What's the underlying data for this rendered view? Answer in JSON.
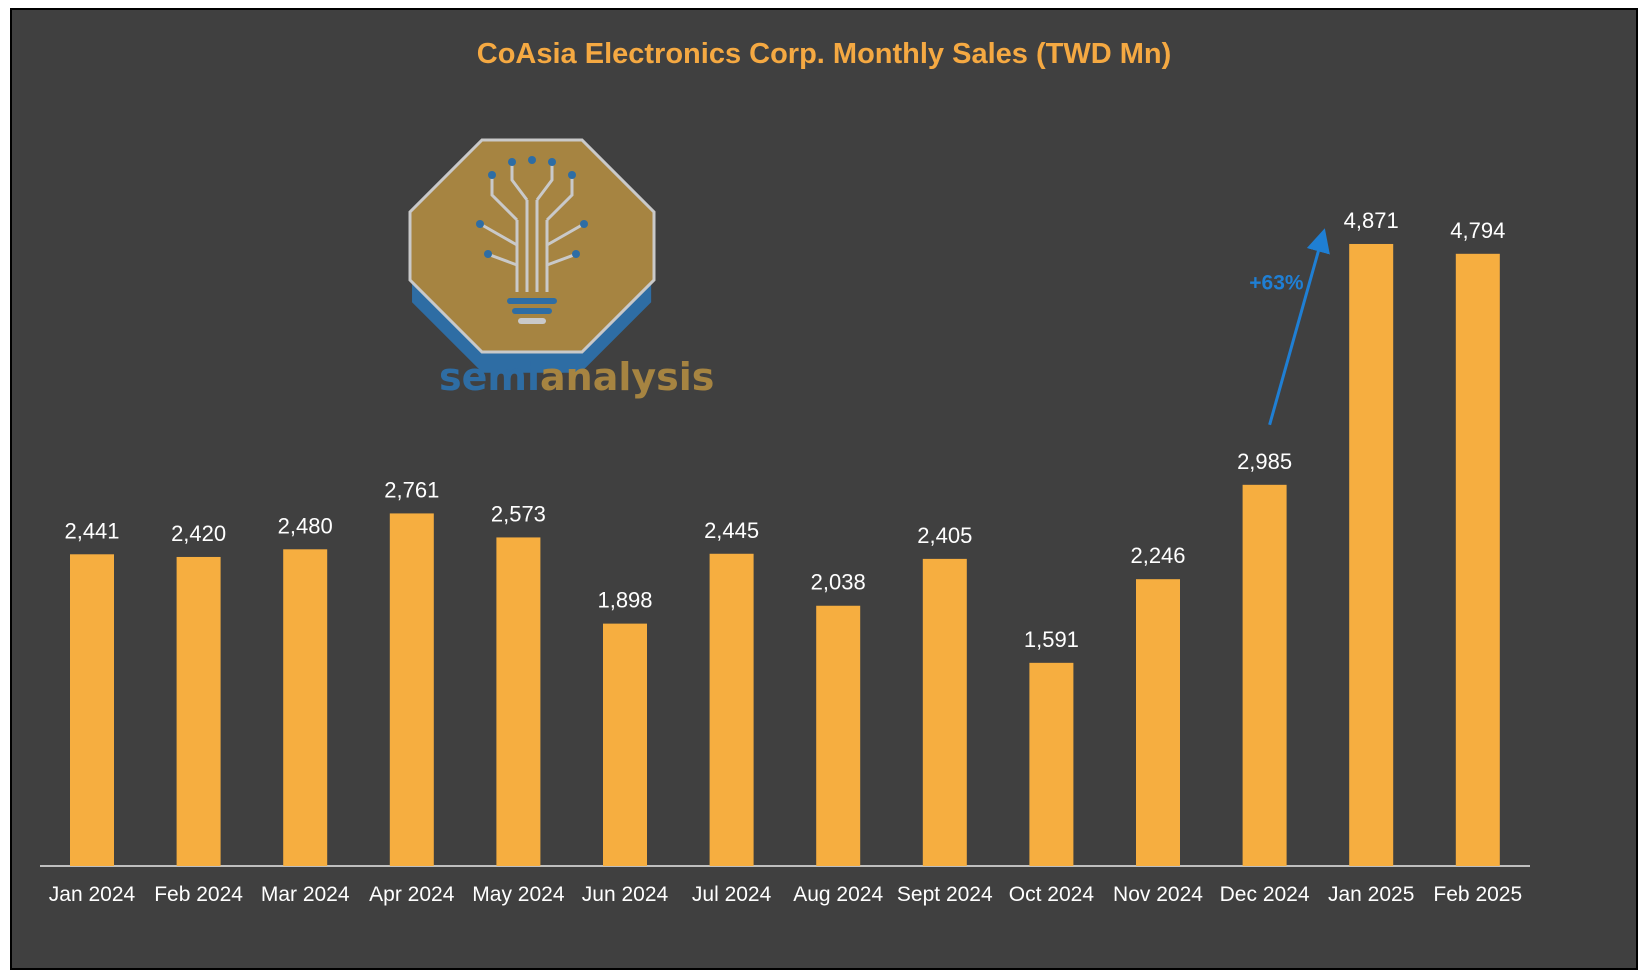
{
  "colors": {
    "background": "#404040",
    "bar": "#f6ae40",
    "title": "#f5a942",
    "text": "#ffffff",
    "axis": "#bfbfbf",
    "annotation": "#1f7fd4"
  },
  "logo": {
    "word_part1": "semi",
    "word_part2": "analysis",
    "icon": "lightbulb-circuit-icon"
  },
  "annotation": {
    "text": "+63%",
    "from_category": "Dec 2024",
    "to_category": "Jan 2025"
  },
  "chart_data": {
    "type": "bar",
    "title": "CoAsia Electronics Corp. Monthly Sales (TWD Mn)",
    "xlabel": "",
    "ylabel": "",
    "ylim": [
      0,
      5000
    ],
    "grid": false,
    "legend": "none",
    "categories": [
      "Jan 2024",
      "Feb 2024",
      "Mar 2024",
      "Apr 2024",
      "May 2024",
      "Jun 2024",
      "Jul 2024",
      "Aug 2024",
      "Sept 2024",
      "Oct 2024",
      "Nov 2024",
      "Dec 2024",
      "Jan 2025",
      "Feb 2025"
    ],
    "values": [
      2441,
      2420,
      2480,
      2761,
      2573,
      1898,
      2445,
      2038,
      2405,
      1591,
      2246,
      2985,
      4871,
      4794
    ],
    "data_labels": [
      "2,441",
      "2,420",
      "2,480",
      "2,761",
      "2,573",
      "1,898",
      "2,445",
      "2,038",
      "2,405",
      "1,591",
      "2,246",
      "2,985",
      "4,871",
      "4,794"
    ]
  }
}
